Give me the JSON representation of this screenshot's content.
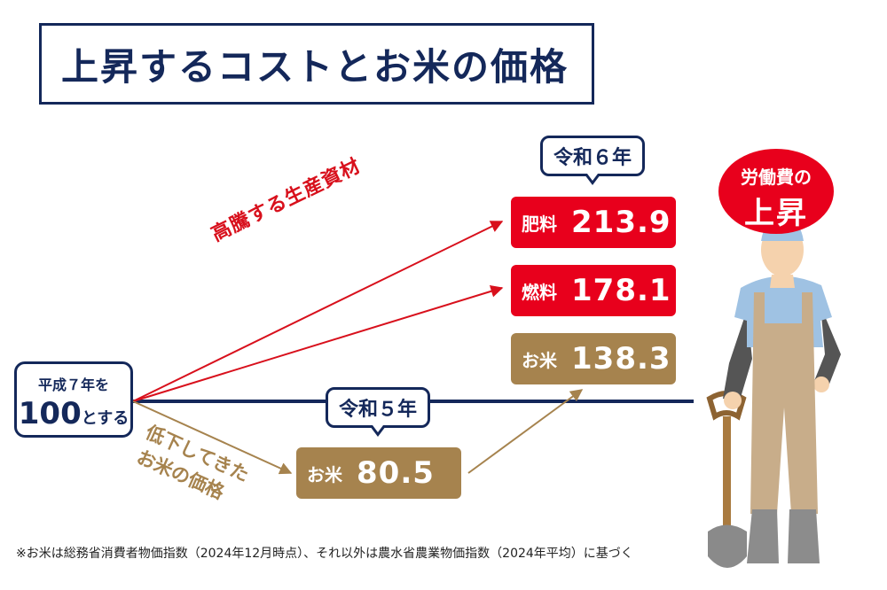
{
  "title": "上昇するコストとお米の価格",
  "base": {
    "line1": "平成７年を",
    "number": "100",
    "suffix": "とする"
  },
  "bubbles": {
    "reiwa6": "令和６年",
    "reiwa5": "令和５年"
  },
  "items": {
    "fertilizer": {
      "label": "肥料",
      "value": "213.9"
    },
    "fuel": {
      "label": "燃料",
      "value": "178.1"
    },
    "rice_r6": {
      "label": "お米",
      "value": "138.3"
    },
    "rice_r5": {
      "label": "お米",
      "value": "80.5"
    }
  },
  "annotations": {
    "rising_materials": "高騰する生産資材",
    "falling_rice_1": "低下してきた",
    "falling_rice_2": "お米の価格"
  },
  "labor": {
    "line1": "労働費の",
    "line2": "上昇"
  },
  "footnote": "※お米は総務省消費者物価指数（2024年12月時点）、それ以外は農水省農業物価指数（2024年平均）に基づく",
  "colors": {
    "navy": "#14285a",
    "red": "#e8001c",
    "brown": "#a6834e"
  },
  "icons": {
    "farmer": "farmer-with-shovel-illustration"
  }
}
